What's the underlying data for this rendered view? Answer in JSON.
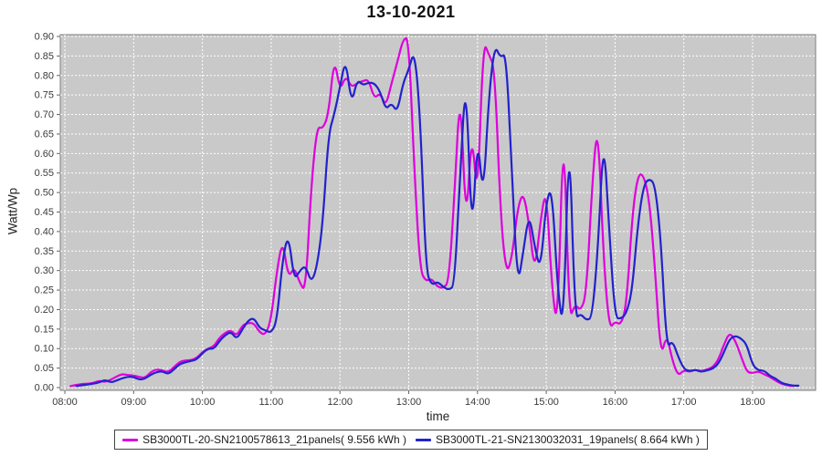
{
  "chart_data": {
    "type": "line",
    "title": "13-10-2021",
    "xlabel": "time",
    "ylabel": "Watt/Wp",
    "ylim": [
      0,
      0.9
    ],
    "y_tick_step": 0.05,
    "x_domain_minutes": [
      476,
      1135
    ],
    "x_tick_minutes": [
      480,
      540,
      600,
      660,
      720,
      780,
      840,
      900,
      960,
      1020,
      1080
    ],
    "x_tick_labels": [
      "08:00",
      "09:00",
      "10:00",
      "11:00",
      "12:00",
      "13:00",
      "14:00",
      "15:00",
      "16:00",
      "17:00",
      "18:00"
    ],
    "grid": "white dashed on gray panel",
    "legend_position": "bottom",
    "plot_background": "#c9c9c9",
    "series": [
      {
        "name": "SB3000TL-20-SN2100578613_21panels( 9.556 kWh )",
        "color": "#DD00DD",
        "points": [
          [
            485,
            0.004
          ],
          [
            490,
            0.007
          ],
          [
            495,
            0.009
          ],
          [
            500,
            0.01
          ],
          [
            505,
            0.012
          ],
          [
            510,
            0.018
          ],
          [
            515,
            0.014
          ],
          [
            520,
            0.02
          ],
          [
            525,
            0.028
          ],
          [
            530,
            0.035
          ],
          [
            535,
            0.032
          ],
          [
            540,
            0.031
          ],
          [
            545,
            0.027
          ],
          [
            550,
            0.025
          ],
          [
            555,
            0.04
          ],
          [
            560,
            0.047
          ],
          [
            565,
            0.044
          ],
          [
            570,
            0.039
          ],
          [
            575,
            0.052
          ],
          [
            580,
            0.066
          ],
          [
            585,
            0.07
          ],
          [
            590,
            0.07
          ],
          [
            595,
            0.076
          ],
          [
            600,
            0.091
          ],
          [
            605,
            0.1
          ],
          [
            610,
            0.106
          ],
          [
            615,
            0.128
          ],
          [
            620,
            0.141
          ],
          [
            625,
            0.147
          ],
          [
            630,
            0.132
          ],
          [
            635,
            0.16
          ],
          [
            640,
            0.166
          ],
          [
            645,
            0.165
          ],
          [
            650,
            0.141
          ],
          [
            655,
            0.135
          ],
          [
            660,
            0.175
          ],
          [
            665,
            0.3
          ],
          [
            670,
            0.38
          ],
          [
            675,
            0.28
          ],
          [
            680,
            0.31
          ],
          [
            685,
            0.268
          ],
          [
            690,
            0.245
          ],
          [
            695,
            0.52
          ],
          [
            700,
            0.67
          ],
          [
            705,
            0.663
          ],
          [
            710,
            0.7
          ],
          [
            715,
            0.848
          ],
          [
            720,
            0.76
          ],
          [
            725,
            0.8
          ],
          [
            730,
            0.77
          ],
          [
            735,
            0.78
          ],
          [
            740,
            0.786
          ],
          [
            745,
            0.79
          ],
          [
            750,
            0.74
          ],
          [
            755,
            0.756
          ],
          [
            760,
            0.72
          ],
          [
            765,
            0.78
          ],
          [
            770,
            0.833
          ],
          [
            775,
            0.893
          ],
          [
            780,
            0.898
          ],
          [
            785,
            0.55
          ],
          [
            790,
            0.3
          ],
          [
            795,
            0.272
          ],
          [
            800,
            0.28
          ],
          [
            805,
            0.258
          ],
          [
            810,
            0.255
          ],
          [
            815,
            0.27
          ],
          [
            820,
            0.5
          ],
          [
            825,
            0.78
          ],
          [
            830,
            0.4
          ],
          [
            835,
            0.668
          ],
          [
            840,
            0.47
          ],
          [
            845,
            0.889
          ],
          [
            850,
            0.853
          ],
          [
            855,
            0.82
          ],
          [
            860,
            0.45
          ],
          [
            865,
            0.29
          ],
          [
            870,
            0.33
          ],
          [
            875,
            0.46
          ],
          [
            880,
            0.503
          ],
          [
            885,
            0.42
          ],
          [
            890,
            0.292
          ],
          [
            895,
            0.43
          ],
          [
            900,
            0.516
          ],
          [
            905,
            0.25
          ],
          [
            910,
            0.148
          ],
          [
            915,
            0.71
          ],
          [
            920,
            0.17
          ],
          [
            925,
            0.215
          ],
          [
            930,
            0.196
          ],
          [
            935,
            0.24
          ],
          [
            940,
            0.52
          ],
          [
            945,
            0.69
          ],
          [
            950,
            0.33
          ],
          [
            955,
            0.15
          ],
          [
            960,
            0.17
          ],
          [
            965,
            0.16
          ],
          [
            970,
            0.21
          ],
          [
            975,
            0.44
          ],
          [
            980,
            0.548
          ],
          [
            985,
            0.545
          ],
          [
            990,
            0.48
          ],
          [
            995,
            0.3
          ],
          [
            1000,
            0.075
          ],
          [
            1005,
            0.138
          ],
          [
            1010,
            0.07
          ],
          [
            1015,
            0.03
          ],
          [
            1020,
            0.045
          ],
          [
            1025,
            0.04
          ],
          [
            1030,
            0.046
          ],
          [
            1035,
            0.042
          ],
          [
            1040,
            0.046
          ],
          [
            1045,
            0.052
          ],
          [
            1050,
            0.07
          ],
          [
            1055,
            0.11
          ],
          [
            1060,
            0.142
          ],
          [
            1065,
            0.12
          ],
          [
            1070,
            0.08
          ],
          [
            1075,
            0.04
          ],
          [
            1080,
            0.037
          ],
          [
            1085,
            0.042
          ],
          [
            1090,
            0.034
          ],
          [
            1095,
            0.028
          ],
          [
            1100,
            0.018
          ],
          [
            1105,
            0.01
          ],
          [
            1110,
            0.006
          ],
          [
            1115,
            0.004
          ]
        ]
      },
      {
        "name": "SB3000TL-21-SN2130032031_19panels( 8.664 kWh )",
        "color": "#2222CC",
        "points": [
          [
            490,
            0.004
          ],
          [
            495,
            0.006
          ],
          [
            500,
            0.008
          ],
          [
            505,
            0.01
          ],
          [
            510,
            0.013
          ],
          [
            515,
            0.02
          ],
          [
            520,
            0.013
          ],
          [
            525,
            0.018
          ],
          [
            530,
            0.024
          ],
          [
            535,
            0.028
          ],
          [
            540,
            0.027
          ],
          [
            545,
            0.02
          ],
          [
            550,
            0.023
          ],
          [
            555,
            0.033
          ],
          [
            560,
            0.04
          ],
          [
            565,
            0.042
          ],
          [
            570,
            0.034
          ],
          [
            575,
            0.046
          ],
          [
            580,
            0.06
          ],
          [
            585,
            0.065
          ],
          [
            590,
            0.068
          ],
          [
            595,
            0.072
          ],
          [
            600,
            0.088
          ],
          [
            605,
            0.1
          ],
          [
            610,
            0.099
          ],
          [
            615,
            0.12
          ],
          [
            620,
            0.135
          ],
          [
            625,
            0.143
          ],
          [
            630,
            0.124
          ],
          [
            635,
            0.15
          ],
          [
            640,
            0.172
          ],
          [
            645,
            0.179
          ],
          [
            650,
            0.152
          ],
          [
            655,
            0.147
          ],
          [
            660,
            0.14
          ],
          [
            665,
            0.17
          ],
          [
            670,
            0.33
          ],
          [
            675,
            0.396
          ],
          [
            680,
            0.275
          ],
          [
            685,
            0.3
          ],
          [
            690,
            0.313
          ],
          [
            695,
            0.268
          ],
          [
            700,
            0.31
          ],
          [
            705,
            0.42
          ],
          [
            710,
            0.65
          ],
          [
            715,
            0.7
          ],
          [
            720,
            0.77
          ],
          [
            725,
            0.845
          ],
          [
            730,
            0.725
          ],
          [
            735,
            0.79
          ],
          [
            740,
            0.775
          ],
          [
            745,
            0.782
          ],
          [
            750,
            0.78
          ],
          [
            755,
            0.76
          ],
          [
            760,
            0.712
          ],
          [
            765,
            0.73
          ],
          [
            770,
            0.705
          ],
          [
            775,
            0.78
          ],
          [
            780,
            0.815
          ],
          [
            785,
            0.867
          ],
          [
            790,
            0.7
          ],
          [
            795,
            0.3
          ],
          [
            800,
            0.262
          ],
          [
            805,
            0.272
          ],
          [
            810,
            0.258
          ],
          [
            815,
            0.25
          ],
          [
            820,
            0.262
          ],
          [
            825,
            0.56
          ],
          [
            830,
            0.808
          ],
          [
            835,
            0.373
          ],
          [
            840,
            0.653
          ],
          [
            845,
            0.48
          ],
          [
            850,
            0.75
          ],
          [
            855,
            0.879
          ],
          [
            860,
            0.845
          ],
          [
            865,
            0.858
          ],
          [
            870,
            0.55
          ],
          [
            875,
            0.258
          ],
          [
            880,
            0.35
          ],
          [
            885,
            0.448
          ],
          [
            890,
            0.36
          ],
          [
            895,
            0.299
          ],
          [
            900,
            0.48
          ],
          [
            905,
            0.513
          ],
          [
            910,
            0.25
          ],
          [
            915,
            0.145
          ],
          [
            920,
            0.683
          ],
          [
            925,
            0.175
          ],
          [
            930,
            0.19
          ],
          [
            935,
            0.172
          ],
          [
            940,
            0.18
          ],
          [
            945,
            0.35
          ],
          [
            950,
            0.655
          ],
          [
            955,
            0.4
          ],
          [
            960,
            0.18
          ],
          [
            965,
            0.176
          ],
          [
            970,
            0.19
          ],
          [
            975,
            0.25
          ],
          [
            980,
            0.42
          ],
          [
            985,
            0.52
          ],
          [
            990,
            0.536
          ],
          [
            995,
            0.52
          ],
          [
            1000,
            0.38
          ],
          [
            1005,
            0.1
          ],
          [
            1010,
            0.121
          ],
          [
            1015,
            0.08
          ],
          [
            1020,
            0.048
          ],
          [
            1025,
            0.042
          ],
          [
            1030,
            0.046
          ],
          [
            1035,
            0.04
          ],
          [
            1040,
            0.044
          ],
          [
            1045,
            0.048
          ],
          [
            1050,
            0.06
          ],
          [
            1055,
            0.09
          ],
          [
            1060,
            0.125
          ],
          [
            1065,
            0.133
          ],
          [
            1070,
            0.126
          ],
          [
            1075,
            0.11
          ],
          [
            1080,
            0.058
          ],
          [
            1085,
            0.044
          ],
          [
            1090,
            0.044
          ],
          [
            1095,
            0.03
          ],
          [
            1100,
            0.024
          ],
          [
            1105,
            0.012
          ],
          [
            1110,
            0.008
          ],
          [
            1115,
            0.005
          ],
          [
            1120,
            0.005
          ]
        ]
      }
    ]
  }
}
